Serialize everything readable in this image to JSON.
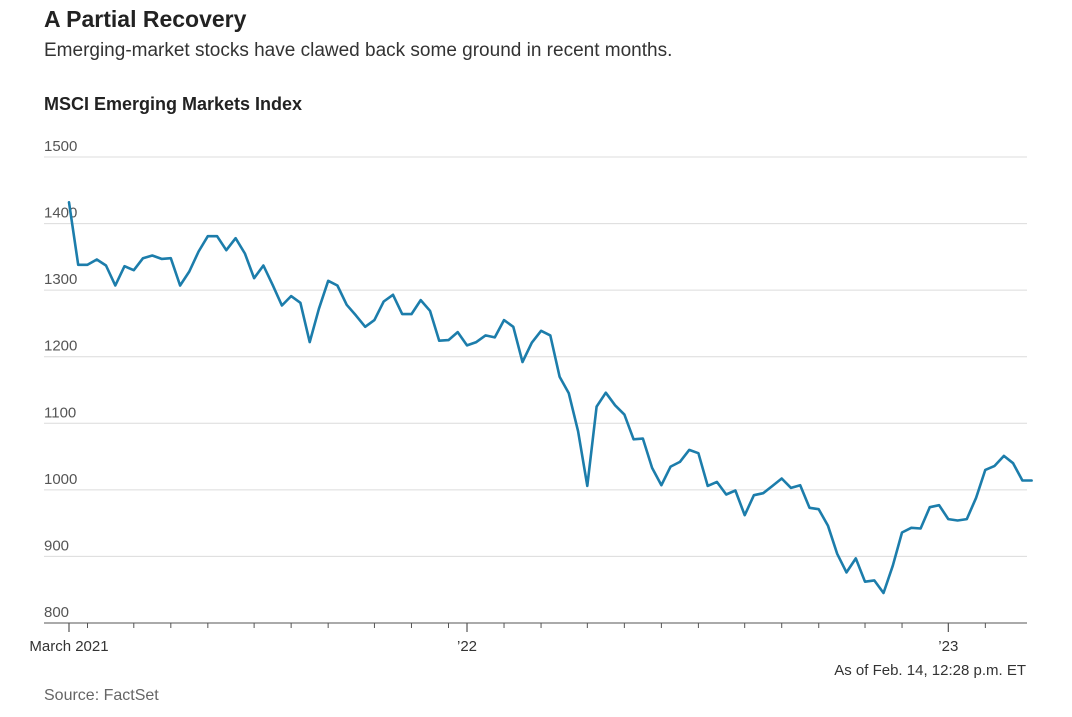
{
  "header": {
    "title": "A Partial Recovery",
    "subtitle": "Emerging-market stocks have clawed back some ground in recent months.",
    "chart_label": "MSCI Emerging Markets Index"
  },
  "footer": {
    "as_of": "As of Feb. 14, 12:28 p.m. ET",
    "source": "Source: FactSet"
  },
  "colors": {
    "line": "#1c7dab",
    "grid": "#dcdcdc",
    "axis": "#555555"
  },
  "chart_data": {
    "type": "line",
    "title": "MSCI Emerging Markets Index",
    "xlabel": "",
    "ylabel": "",
    "ylim": [
      800,
      1500
    ],
    "y_ticks": [
      800,
      900,
      1000,
      1100,
      1200,
      1300,
      1400,
      1500
    ],
    "x_tick_labels": [
      {
        "label": "March 2021",
        "week": 0
      },
      {
        "label": "’22",
        "week": 43
      },
      {
        "label": "’23",
        "week": 95
      }
    ],
    "x_minor_tick_weeks": [
      2,
      7,
      11,
      15,
      20,
      24,
      28,
      33,
      37,
      41,
      47,
      51,
      56,
      60,
      64,
      68,
      73,
      77,
      81,
      86,
      90,
      99
    ],
    "x_range_weeks": [
      -2.7,
      103.5
    ],
    "grid": true,
    "series": [
      {
        "values": [
          1432,
          1338,
          1338,
          1346,
          1337,
          1307,
          1336,
          1330,
          1348,
          1352,
          1347,
          1348,
          1307,
          1328,
          1358,
          1381,
          1381,
          1360,
          1378,
          1355,
          1318,
          1337,
          1308,
          1277,
          1291,
          1281,
          1222,
          1272,
          1314,
          1307,
          1278,
          1262,
          1245,
          1255,
          1283,
          1293,
          1264,
          1264,
          1285,
          1269,
          1224,
          1225,
          1237,
          1217,
          1222,
          1232,
          1229,
          1255,
          1245,
          1192,
          1221,
          1239,
          1232,
          1170,
          1145,
          1088,
          1006,
          1125,
          1146,
          1127,
          1113,
          1076,
          1077,
          1033,
          1007,
          1035,
          1042,
          1060,
          1055,
          1006,
          1012,
          993,
          999,
          962,
          992,
          995,
          1006,
          1017,
          1003,
          1007,
          973,
          971,
          946,
          904,
          876,
          897,
          862,
          864,
          845,
          886,
          936,
          943,
          942,
          974,
          977,
          956,
          954,
          956,
          988,
          1030,
          1036,
          1051,
          1040,
          1014,
          1014
        ]
      }
    ]
  }
}
